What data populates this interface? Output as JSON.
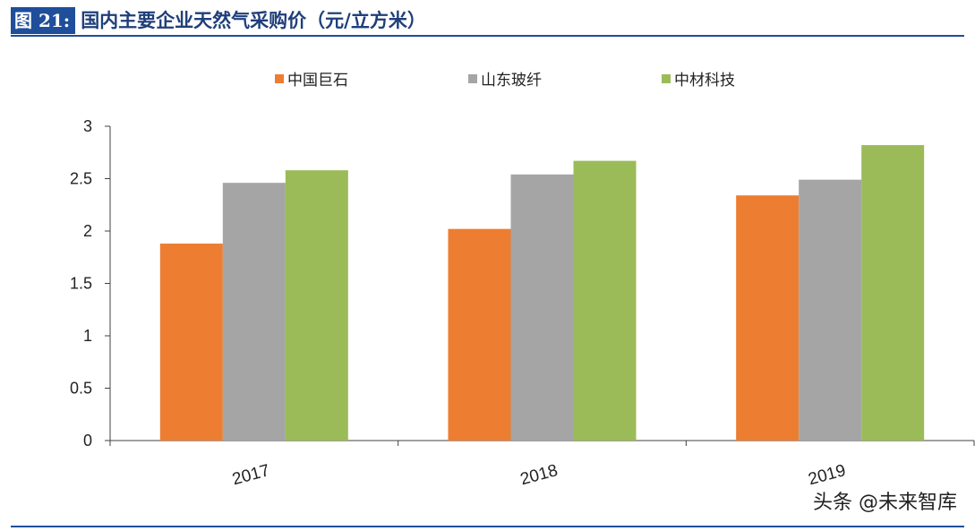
{
  "header": {
    "figure_label": "图 21:",
    "title": "国内主要企业天然气采购价（元/立方米）"
  },
  "watermark": "头条 @未来智库",
  "colors": {
    "header_bg": "#1f4e9a",
    "rule": "#1f4e9a",
    "series": [
      "#ed7d31",
      "#a5a5a5",
      "#9bbb59"
    ]
  },
  "chart_data": {
    "type": "bar",
    "categories": [
      "2017",
      "2018",
      "2019"
    ],
    "series": [
      {
        "name": "中国巨石",
        "values": [
          1.88,
          2.02,
          2.34
        ]
      },
      {
        "name": "山东玻纤",
        "values": [
          2.46,
          2.54,
          2.49
        ]
      },
      {
        "name": "中材科技",
        "values": [
          2.58,
          2.67,
          2.82
        ]
      }
    ],
    "ylim": [
      0,
      3
    ],
    "yticks": [
      "0",
      "0.5",
      "1",
      "1.5",
      "2",
      "2.5",
      "3"
    ],
    "title": "",
    "xlabel": "",
    "ylabel": "",
    "legend_position": "top",
    "grid": false
  }
}
